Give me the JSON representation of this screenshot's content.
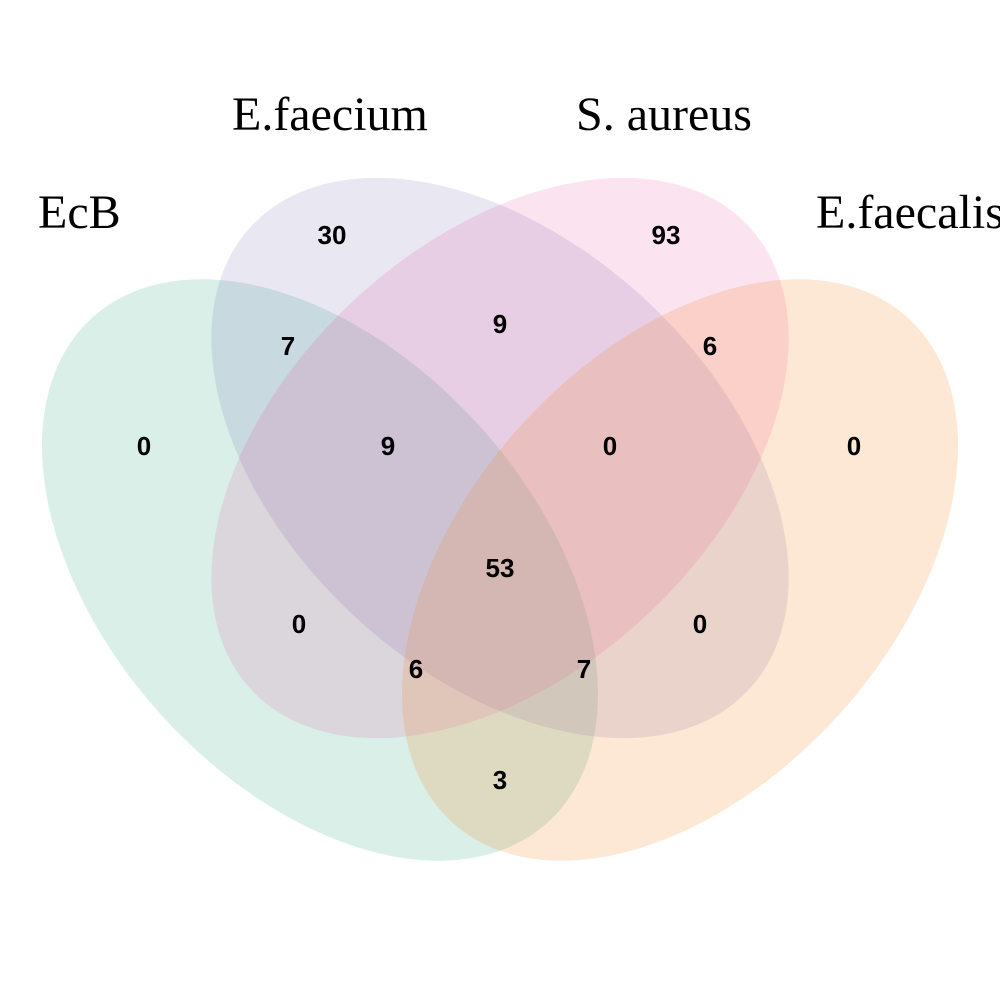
{
  "sets": [
    {
      "name": "EcB",
      "color": "#1b9e77"
    },
    {
      "name": "E.faecium",
      "color": "#7570b3"
    },
    {
      "name": "S. aureus",
      "color": "#e7298a"
    },
    {
      "name": "E.faecalis",
      "color": "#f4862c"
    }
  ],
  "regions": {
    "ecb_only": "0",
    "faecium_only": "30",
    "aureus_only": "93",
    "faecalis_only": "0",
    "ecb_faecium": "7",
    "faecium_aureus": "9",
    "aureus_faecalis": "6",
    "ecb_faecium_aureus": "9",
    "faecium_aureus_faecalis": "0",
    "all_four": "53",
    "ecb_aureus": "0",
    "faecium_faecalis": "0",
    "ecb_aureus_faecalis": "6",
    "ecb_faecium_faecalis": "7",
    "ecb_faecalis": "3"
  }
}
